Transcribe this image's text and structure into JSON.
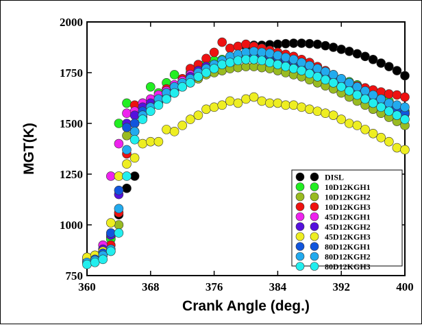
{
  "chart_data": {
    "type": "scatter",
    "title": "",
    "xlabel": "Crank Angle (deg.)",
    "ylabel": "MGT(K)",
    "xlim": [
      360,
      400
    ],
    "ylim": [
      750,
      2000
    ],
    "xticks": [
      "360",
      "368",
      "376",
      "384",
      "392",
      "400"
    ],
    "yticks": [
      "750",
      "1000",
      "1250",
      "1500",
      "1750",
      "2000"
    ],
    "grid": false,
    "legend_position": "bottom-right",
    "series": [
      {
        "name": "DISL",
        "color": "#000000",
        "x": [
          363,
          364,
          365,
          366,
          380,
          381,
          382,
          383,
          384,
          385,
          386,
          387,
          388,
          389,
          390,
          391,
          392,
          393,
          394,
          395,
          396,
          397,
          398,
          399,
          400
        ],
        "y": [
          940,
          1050,
          1180,
          1240,
          1880,
          1885,
          1885,
          1888,
          1890,
          1893,
          1895,
          1895,
          1893,
          1890,
          1883,
          1875,
          1865,
          1855,
          1843,
          1830,
          1815,
          1797,
          1780,
          1760,
          1735
        ]
      },
      {
        "name": "10D12KGH1",
        "color": "#22ee22",
        "x": [
          360,
          361,
          362,
          363,
          364,
          365,
          366,
          367,
          368,
          369,
          370,
          371,
          372,
          373,
          374,
          375,
          376,
          377,
          378,
          379,
          380,
          381,
          382,
          383,
          384,
          385,
          386,
          387,
          388,
          389,
          390,
          391,
          392,
          393,
          394,
          395,
          396,
          397,
          398,
          399,
          400
        ],
        "y": [
          820,
          840,
          870,
          930,
          1500,
          1600,
          1500,
          1560,
          1680,
          1650,
          1700,
          1740,
          1720,
          1750,
          1780,
          1800,
          1810,
          1815,
          1830,
          1820,
          1830,
          1835,
          1830,
          1825,
          1820,
          1810,
          1800,
          1790,
          1780,
          1765,
          1750,
          1735,
          1720,
          1705,
          1690,
          1670,
          1650,
          1630,
          1610,
          1580,
          1560
        ]
      },
      {
        "name": "10D12KGH2",
        "color": "#99bb22",
        "x": [
          360,
          361,
          362,
          363,
          364,
          365,
          366,
          367,
          368,
          369,
          370,
          371,
          372,
          373,
          374,
          375,
          376,
          377,
          378,
          379,
          380,
          381,
          382,
          383,
          384,
          385,
          386,
          387,
          388,
          389,
          390,
          391,
          392,
          393,
          394,
          395,
          396,
          397,
          398,
          399,
          400
        ],
        "y": [
          830,
          835,
          850,
          870,
          1000,
          1440,
          1460,
          1530,
          1600,
          1620,
          1640,
          1660,
          1680,
          1700,
          1720,
          1740,
          1750,
          1760,
          1770,
          1775,
          1780,
          1780,
          1775,
          1770,
          1760,
          1750,
          1740,
          1730,
          1715,
          1700,
          1685,
          1670,
          1650,
          1630,
          1610,
          1590,
          1570,
          1550,
          1530,
          1510,
          1490
        ]
      },
      {
        "name": "10D12KGH3",
        "color": "#ee1111",
        "x": [
          360,
          361,
          362,
          363,
          364,
          365,
          366,
          367,
          368,
          369,
          370,
          371,
          372,
          373,
          374,
          375,
          376,
          377,
          378,
          379,
          380,
          381,
          382,
          383,
          384,
          385,
          386,
          387,
          388,
          389,
          390,
          391,
          392,
          393,
          394,
          395,
          396,
          397,
          398,
          399,
          400
        ],
        "y": [
          820,
          845,
          880,
          900,
          1060,
          1350,
          1590,
          1600,
          1610,
          1630,
          1670,
          1690,
          1720,
          1770,
          1790,
          1820,
          1850,
          1900,
          1870,
          1880,
          1890,
          1880,
          1870,
          1860,
          1850,
          1840,
          1830,
          1815,
          1800,
          1780,
          1760,
          1740,
          1720,
          1700,
          1685,
          1675,
          1665,
          1655,
          1645,
          1640,
          1630
        ]
      },
      {
        "name": "45D12KGH1",
        "color": "#ee22ee",
        "x": [
          360,
          361,
          362,
          363,
          364,
          365,
          366,
          367,
          368,
          369,
          370,
          371,
          372,
          373,
          374,
          375,
          376,
          377,
          378,
          379,
          380,
          381,
          382,
          383,
          384,
          385,
          386,
          387,
          388,
          389,
          390,
          391,
          392,
          393,
          394,
          395,
          396,
          397,
          398,
          399,
          400
        ],
        "y": [
          840,
          850,
          900,
          1240,
          1400,
          1550,
          1560,
          1600,
          1620,
          1640,
          1660,
          1690,
          1710,
          1740,
          1760,
          1780,
          1790,
          1800,
          1810,
          1820,
          1825,
          1830,
          1835,
          1830,
          1825,
          1815,
          1805,
          1795,
          1780,
          1765,
          1750,
          1730,
          1710,
          1690,
          1670,
          1650,
          1630,
          1610,
          1590,
          1570,
          1550
        ]
      },
      {
        "name": "45D12KGH2",
        "color": "#5511dd",
        "x": [
          360,
          361,
          362,
          363,
          364,
          365,
          366,
          367,
          368,
          369,
          370,
          371,
          372,
          373,
          374,
          375,
          376,
          377,
          378,
          379,
          380,
          381,
          382,
          383,
          384,
          385,
          386,
          387,
          388,
          389,
          390,
          391,
          392,
          393,
          394,
          395,
          396,
          397,
          398,
          399,
          400
        ],
        "y": [
          815,
          840,
          880,
          950,
          1150,
          1500,
          1540,
          1580,
          1600,
          1610,
          1650,
          1670,
          1700,
          1730,
          1760,
          1780,
          1790,
          1810,
          1820,
          1830,
          1840,
          1845,
          1840,
          1830,
          1820,
          1810,
          1800,
          1790,
          1775,
          1760,
          1745,
          1725,
          1705,
          1685,
          1665,
          1645,
          1625,
          1605,
          1585,
          1565,
          1545
        ]
      },
      {
        "name": "45D12KGH3",
        "color": "#eeee22",
        "x": [
          360,
          361,
          362,
          363,
          364,
          365,
          366,
          367,
          368,
          369,
          370,
          371,
          372,
          373,
          374,
          375,
          376,
          377,
          378,
          379,
          380,
          381,
          382,
          383,
          384,
          385,
          386,
          387,
          388,
          389,
          390,
          391,
          392,
          393,
          394,
          395,
          396,
          397,
          398,
          399,
          400
        ],
        "y": [
          840,
          850,
          870,
          1010,
          1240,
          1300,
          1330,
          1400,
          1410,
          1410,
          1470,
          1460,
          1490,
          1520,
          1540,
          1570,
          1580,
          1590,
          1610,
          1600,
          1620,
          1630,
          1610,
          1600,
          1600,
          1590,
          1590,
          1580,
          1570,
          1560,
          1550,
          1540,
          1520,
          1500,
          1490,
          1470,
          1450,
          1430,
          1410,
          1380,
          1370
        ]
      },
      {
        "name": "80D12KGH1",
        "color": "#1155dd",
        "x": [
          360,
          361,
          362,
          363,
          364,
          365,
          366,
          367,
          368,
          369,
          370,
          371,
          372,
          373,
          374,
          375,
          376,
          377,
          378,
          379,
          380,
          381,
          382,
          383,
          384,
          385,
          386,
          387,
          388,
          389,
          390,
          391,
          392,
          393,
          394,
          395,
          396,
          397,
          398,
          399,
          400
        ],
        "y": [
          810,
          830,
          860,
          960,
          1170,
          1480,
          1500,
          1560,
          1580,
          1600,
          1630,
          1650,
          1680,
          1710,
          1730,
          1760,
          1780,
          1800,
          1810,
          1820,
          1830,
          1840,
          1840,
          1835,
          1825,
          1815,
          1805,
          1790,
          1775,
          1760,
          1745,
          1725,
          1705,
          1685,
          1665,
          1645,
          1625,
          1605,
          1585,
          1570,
          1550
        ]
      },
      {
        "name": "80D12KGH2",
        "color": "#22aaee",
        "x": [
          360,
          361,
          362,
          363,
          364,
          365,
          366,
          367,
          368,
          369,
          370,
          371,
          372,
          373,
          374,
          375,
          376,
          377,
          378,
          379,
          380,
          381,
          382,
          383,
          384,
          385,
          386,
          387,
          388,
          389,
          390,
          391,
          392,
          393,
          394,
          395,
          396,
          397,
          398,
          399,
          400
        ],
        "y": [
          815,
          825,
          850,
          880,
          1080,
          1370,
          1460,
          1540,
          1580,
          1620,
          1650,
          1680,
          1700,
          1720,
          1750,
          1770,
          1790,
          1810,
          1830,
          1840,
          1850,
          1855,
          1850,
          1845,
          1835,
          1825,
          1815,
          1800,
          1785,
          1770,
          1755,
          1740,
          1720,
          1700,
          1680,
          1660,
          1640,
          1620,
          1600,
          1590,
          1580
        ]
      },
      {
        "name": "80D12KGH3",
        "color": "#22eeee",
        "x": [
          360,
          361,
          362,
          363,
          364,
          365,
          366,
          367,
          368,
          369,
          370,
          371,
          372,
          373,
          374,
          375,
          376,
          377,
          378,
          379,
          380,
          381,
          382,
          383,
          384,
          385,
          386,
          387,
          388,
          389,
          390,
          391,
          392,
          393,
          394,
          395,
          396,
          397,
          398,
          399,
          400
        ],
        "y": [
          805,
          815,
          830,
          870,
          960,
          1240,
          1420,
          1520,
          1560,
          1590,
          1620,
          1650,
          1680,
          1700,
          1730,
          1750,
          1770,
          1790,
          1800,
          1810,
          1815,
          1815,
          1810,
          1800,
          1790,
          1780,
          1770,
          1760,
          1745,
          1730,
          1715,
          1700,
          1680,
          1660,
          1640,
          1620,
          1600,
          1580,
          1560,
          1540,
          1520
        ]
      }
    ]
  }
}
